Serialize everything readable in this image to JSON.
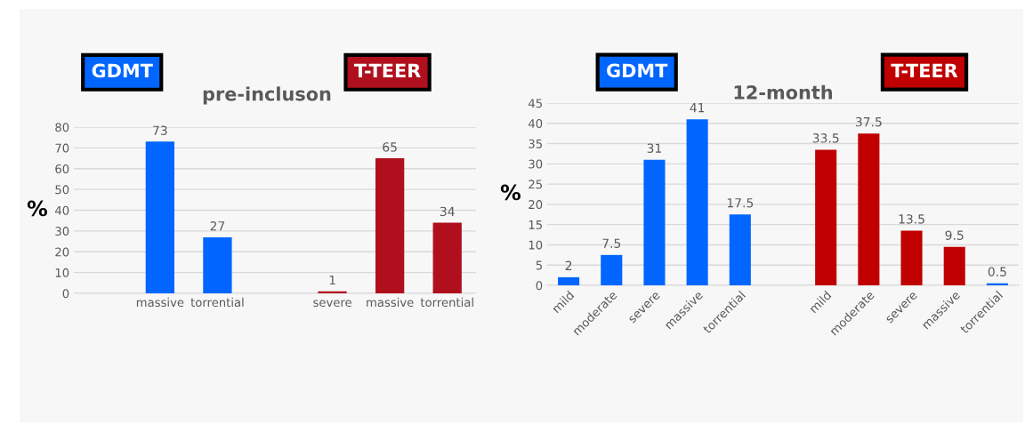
{
  "chart_data": [
    {
      "type": "bar",
      "title": "pre-incluson",
      "ylabel": "%",
      "categories": [
        null,
        "massive",
        "torrential",
        null,
        "severe",
        "massive",
        "torrential"
      ],
      "ylim": [
        0,
        80
      ],
      "yticks": [
        0,
        10,
        20,
        30,
        40,
        50,
        60,
        70,
        80
      ],
      "grid": "y",
      "data_labels": true,
      "series": [
        {
          "name": "GDMT",
          "color": "#0066ff",
          "values": [
            null,
            73,
            27,
            null,
            null,
            null,
            null
          ]
        },
        {
          "name": "T-TEER",
          "color": "#b0101e",
          "values": [
            null,
            null,
            null,
            null,
            1,
            65,
            34
          ]
        }
      ]
    },
    {
      "type": "bar",
      "title": "12-month",
      "ylabel": "%",
      "categories": [
        "mild",
        "moderate",
        "severe",
        "massive",
        "torrential",
        null,
        "mild",
        "moderate",
        "severe",
        "massive",
        "torrential"
      ],
      "ylim": [
        0,
        45
      ],
      "yticks": [
        0,
        5,
        10,
        15,
        20,
        25,
        30,
        35,
        40,
        45
      ],
      "grid": "y",
      "data_labels": true,
      "series": [
        {
          "name": "GDMT",
          "color": "#0066ff",
          "values": [
            2,
            7.5,
            31,
            41,
            17.5,
            null,
            null,
            null,
            null,
            null,
            null
          ]
        },
        {
          "name": "T-TEER",
          "color": "#c00000",
          "colors": [
            null,
            null,
            null,
            null,
            null,
            null,
            "#c00000",
            "#c00000",
            "#c00000",
            "#c00000",
            "#0066ff"
          ],
          "values": [
            null,
            null,
            null,
            null,
            null,
            null,
            33.5,
            37.5,
            13.5,
            9.5,
            0.5
          ]
        }
      ]
    }
  ]
}
